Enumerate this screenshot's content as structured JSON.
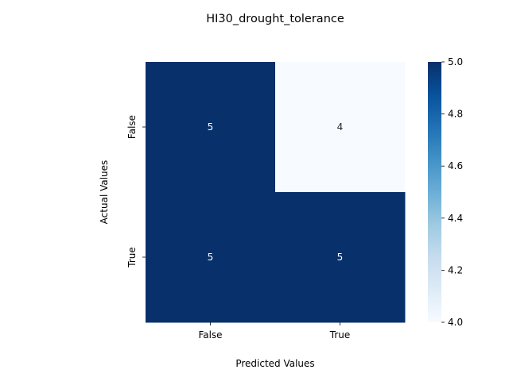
{
  "chart_data": {
    "type": "heatmap",
    "title": "HI30_drought_tolerance",
    "xlabel": "Predicted Values",
    "ylabel": "Actual Values",
    "x_categories": [
      "False",
      "True"
    ],
    "y_categories": [
      "False",
      "True"
    ],
    "values": [
      [
        5,
        4
      ],
      [
        5,
        5
      ]
    ],
    "colorbar": {
      "min": 4.0,
      "max": 5.0,
      "ticks": [
        "4.0",
        "4.2",
        "4.4",
        "4.6",
        "4.8",
        "5.0"
      ],
      "cmap": "Blues",
      "low_color": "#f7fbff",
      "high_color": "#08306b"
    },
    "grid": false
  }
}
